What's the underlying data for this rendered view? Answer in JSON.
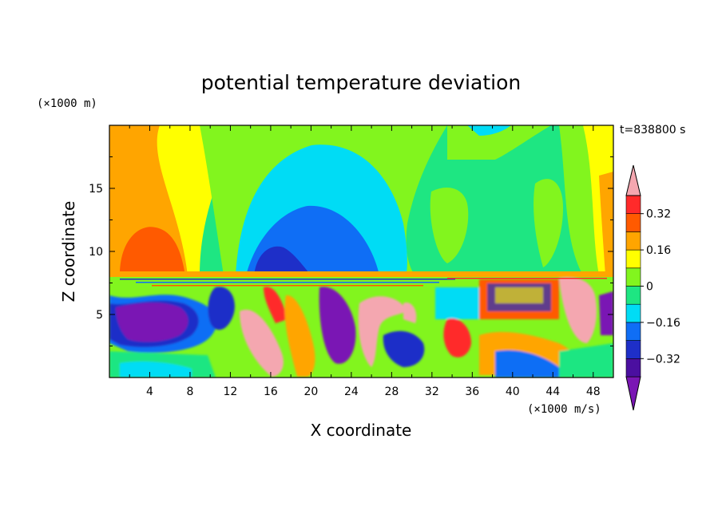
{
  "chart_data": {
    "type": "heatmap",
    "title": "potential temperature deviation",
    "xlabel": "X coordinate",
    "ylabel": "Z coordinate",
    "x_unit": "(×1000 m/s)",
    "y_unit": "(×1000 m)",
    "time_label": "t=838800 s",
    "xlim": [
      0,
      50
    ],
    "ylim": [
      0,
      20
    ],
    "x_ticks": [
      4,
      8,
      12,
      16,
      20,
      24,
      28,
      32,
      36,
      40,
      44,
      48
    ],
    "y_ticks": [
      5,
      10,
      15
    ],
    "colorbar": {
      "levels": [
        -0.4,
        -0.32,
        -0.24,
        -0.16,
        -0.08,
        0,
        0.08,
        0.16,
        0.24,
        0.32,
        0.4
      ],
      "labels": [
        "0.32",
        "0.16",
        "0",
        "−0.16",
        "−0.32"
      ],
      "label_values": [
        0.32,
        0.16,
        0,
        -0.16,
        -0.32
      ],
      "colors": [
        "#7a16b4",
        "#4b0fa0",
        "#1e2fc8",
        "#0f6ef5",
        "#00dcf5",
        "#1ee682",
        "#82f51e",
        "#ffff00",
        "#ffa500",
        "#ff5a00",
        "#ff2a2a",
        "#f4a7b0"
      ]
    },
    "grid": false
  }
}
